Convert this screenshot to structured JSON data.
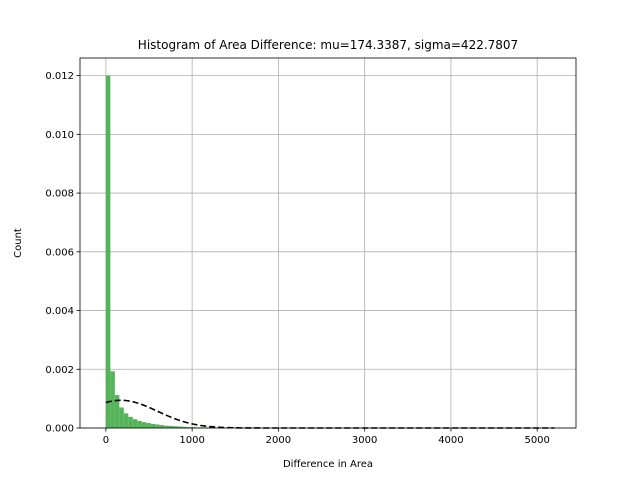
{
  "chart_data": {
    "type": "bar",
    "title": "Histogram of Area Difference: mu=174.3387, sigma=422.7807",
    "xlabel": "Difference in Area",
    "ylabel": "Count",
    "xlim": [
      -300,
      5450
    ],
    "ylim": [
      0,
      0.0126
    ],
    "xticks": [
      0,
      1000,
      2000,
      3000,
      4000,
      5000
    ],
    "xtick_labels": [
      "0",
      "1000",
      "2000",
      "3000",
      "4000",
      "5000"
    ],
    "yticks": [
      0,
      0.002,
      0.004,
      0.006,
      0.008,
      0.01,
      0.012
    ],
    "ytick_labels": [
      "0.000",
      "0.002",
      "0.004",
      "0.006",
      "0.008",
      "0.010",
      "0.012"
    ],
    "grid": true,
    "bar_color": "#4CAF50",
    "curve_color": "#000000",
    "bin_width": 52,
    "bins": [
      {
        "x0": 0,
        "value": 0.012
      },
      {
        "x0": 52,
        "value": 0.00193
      },
      {
        "x0": 104,
        "value": 0.00112
      },
      {
        "x0": 156,
        "value": 0.0007
      },
      {
        "x0": 208,
        "value": 0.0005
      },
      {
        "x0": 260,
        "value": 0.00038
      },
      {
        "x0": 312,
        "value": 0.0003
      },
      {
        "x0": 364,
        "value": 0.00024
      },
      {
        "x0": 416,
        "value": 0.0002
      },
      {
        "x0": 468,
        "value": 0.00017
      },
      {
        "x0": 520,
        "value": 0.00014
      },
      {
        "x0": 572,
        "value": 0.00012
      },
      {
        "x0": 624,
        "value": 0.0001
      },
      {
        "x0": 676,
        "value": 8e-05
      },
      {
        "x0": 728,
        "value": 7e-05
      },
      {
        "x0": 780,
        "value": 6e-05
      },
      {
        "x0": 832,
        "value": 5e-05
      },
      {
        "x0": 884,
        "value": 4e-05
      },
      {
        "x0": 936,
        "value": 3e-05
      },
      {
        "x0": 988,
        "value": 3e-05
      },
      {
        "x0": 1040,
        "value": 2e-05
      },
      {
        "x0": 1092,
        "value": 2e-05
      },
      {
        "x0": 1144,
        "value": 2e-05
      },
      {
        "x0": 1196,
        "value": 1e-05
      },
      {
        "x0": 1248,
        "value": 1e-05
      },
      {
        "x0": 1300,
        "value": 1e-05
      },
      {
        "x0": 1352,
        "value": 1e-05
      },
      {
        "x0": 1404,
        "value": 1e-05
      },
      {
        "x0": 1456,
        "value": 1e-05
      },
      {
        "x0": 1508,
        "value": 1e-05
      }
    ],
    "normal_fit": {
      "mu": 174.3387,
      "sigma": 422.7807,
      "x_range": [
        0,
        5200
      ],
      "style": "dashed"
    }
  }
}
